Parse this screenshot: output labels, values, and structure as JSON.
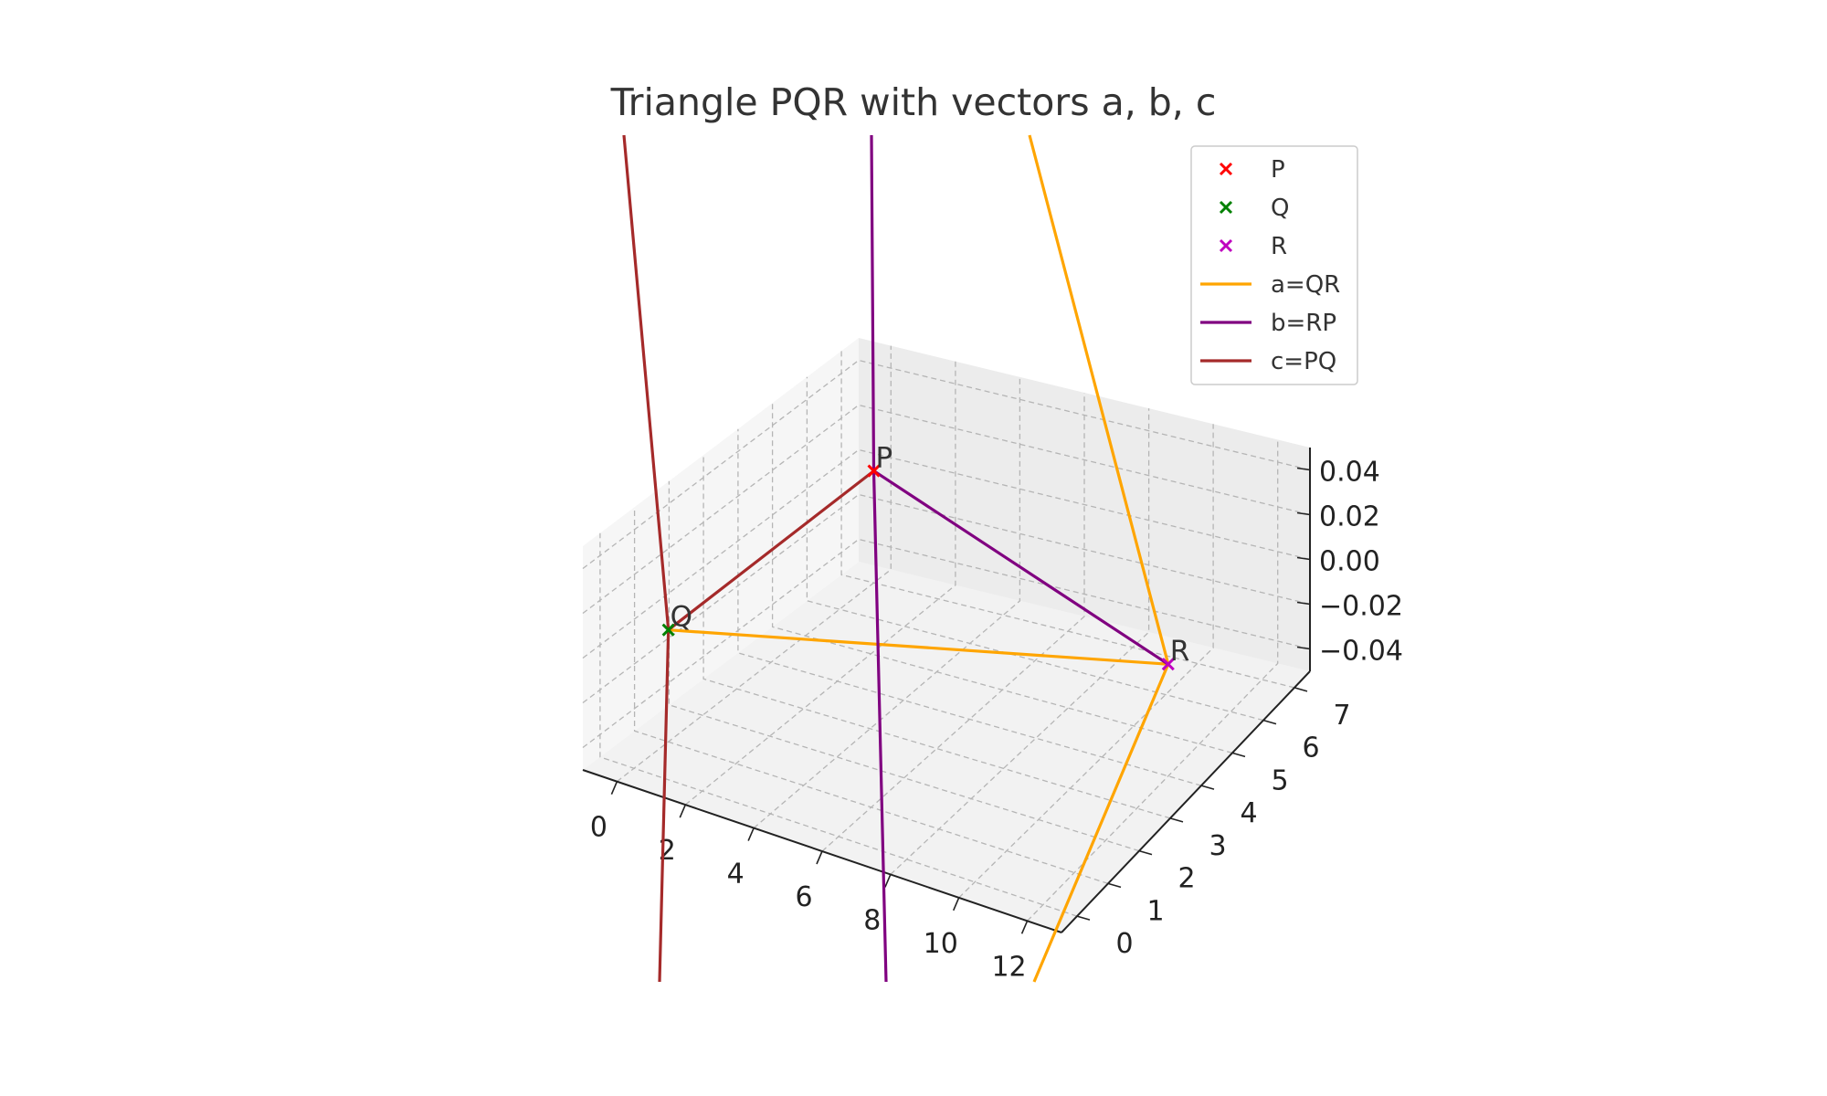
{
  "chart_data": {
    "type": "line",
    "projection": "3d",
    "title": "Triangle PQR with vectors a, b, c",
    "xlabel": "",
    "ylabel": "",
    "zlabel": "",
    "xlim": [
      -1,
      13
    ],
    "ylim": [
      -0.5,
      7.5
    ],
    "zlim": [
      -0.05,
      0.05
    ],
    "x_ticks": [
      "0",
      "2",
      "4",
      "6",
      "8",
      "10",
      "12"
    ],
    "y_ticks": [
      "0",
      "1",
      "2",
      "3",
      "4",
      "5",
      "6",
      "7"
    ],
    "z_ticks": [
      "−0.04",
      "−0.02",
      "0.00",
      "0.02",
      "0.04"
    ],
    "grid": true,
    "legend_position": "top-right",
    "points": [
      {
        "name": "P",
        "label": "P",
        "x": 0,
        "y": 7,
        "z": 0,
        "color": "#ff0000",
        "marker": "x"
      },
      {
        "name": "Q",
        "label": "Q",
        "x": 0,
        "y": 1,
        "z": 0,
        "color": "#008000",
        "marker": "x"
      },
      {
        "name": "R",
        "label": "R",
        "x": 12,
        "y": 4,
        "z": 0,
        "color": "#bf00bf",
        "marker": "x"
      }
    ],
    "series": [
      {
        "name": "a=QR",
        "from": "Q",
        "to": "R",
        "color": "#ffa500"
      },
      {
        "name": "b=RP",
        "from": "R",
        "to": "P",
        "color": "#800080"
      },
      {
        "name": "c=PQ",
        "from": "P",
        "to": "Q",
        "color": "#a52a2a"
      }
    ]
  }
}
